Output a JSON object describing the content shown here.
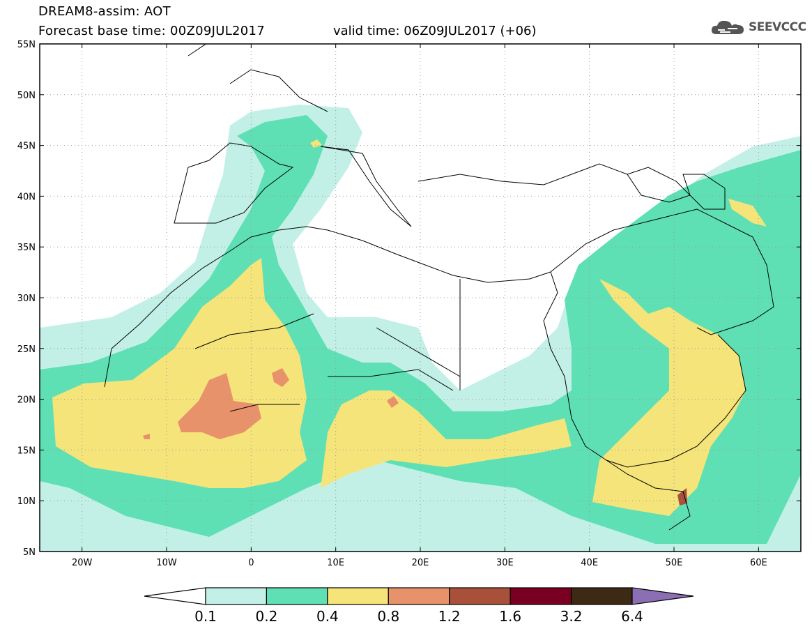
{
  "header": {
    "title_line1": "DREAM8-assim: AOT",
    "title_line2": "Forecast base time: 00Z09JUL2017",
    "valid_time": "valid time: 06Z09JUL2017 (+06)"
  },
  "logo": {
    "text": "SEEVCCC",
    "icon": "cloud-icon"
  },
  "map": {
    "lon_range": [
      -25,
      65
    ],
    "lat_range": [
      5,
      55
    ],
    "lat_labels": [
      "55N",
      "50N",
      "45N",
      "40N",
      "35N",
      "30N",
      "25N",
      "20N",
      "15N",
      "10N",
      "5N"
    ],
    "lon_labels": [
      "20W",
      "10W",
      "0",
      "10E",
      "20E",
      "30E",
      "40E",
      "50E",
      "60E"
    ],
    "grid": "dotted"
  },
  "legend": {
    "levels": [
      "0.1",
      "0.2",
      "0.4",
      "0.8",
      "1.2",
      "1.6",
      "3.2",
      "6.4"
    ],
    "colors": [
      "#ffffff",
      "#c3f0e6",
      "#5ee0b4",
      "#f5e47a",
      "#e8926b",
      "#a9503a",
      "#7a0022",
      "#3d2a14",
      "#8b6fb4"
    ]
  }
}
